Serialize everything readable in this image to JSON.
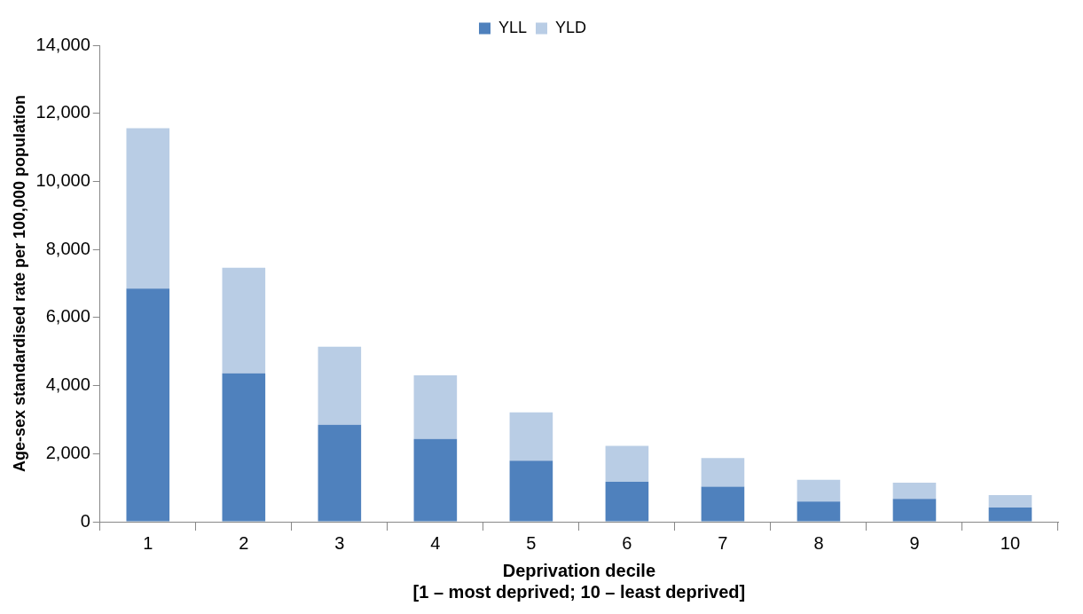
{
  "chart_data": {
    "type": "bar",
    "stacked": true,
    "xlabel": "Deprivation decile\n[1 – most deprived; 10 – least deprived]",
    "ylabel": "Age-sex standardised rate per 100,000 population",
    "categories": [
      "1",
      "2",
      "3",
      "4",
      "5",
      "6",
      "7",
      "8",
      "9",
      "10"
    ],
    "series": [
      {
        "name": "YLL",
        "color": "#4f81bd",
        "values": [
          6850,
          4360,
          2850,
          2430,
          1790,
          1170,
          1030,
          590,
          670,
          420
        ]
      },
      {
        "name": "YLD",
        "color": "#b9cde5",
        "values": [
          4710,
          3100,
          2290,
          1870,
          1420,
          1060,
          840,
          640,
          480,
          360
        ]
      }
    ],
    "ylim": [
      0,
      14000
    ],
    "yticks": [
      0,
      {
        "value": 2000,
        "label": "2,000"
      },
      {
        "value": 4000,
        "label": "4,000"
      },
      {
        "value": 6000,
        "label": "6,000"
      },
      {
        "value": 8000,
        "label": "8,000"
      },
      {
        "value": 10000,
        "label": "10,000"
      },
      {
        "value": 12000,
        "label": "12,000"
      },
      {
        "value": 14000,
        "label": "14,000"
      }
    ],
    "grid": false,
    "legend": "top"
  }
}
